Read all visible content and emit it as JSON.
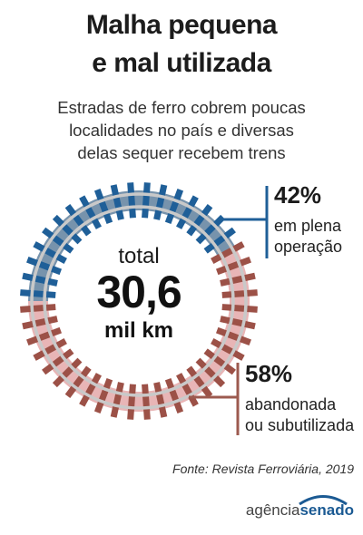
{
  "header": {
    "title_line1": "Malha pequena",
    "title_line2": "e mal utilizada",
    "subtitle_line1": "Estradas de ferro cobrem poucas",
    "subtitle_line2": "localidades no país e diversas",
    "subtitle_line3": "delas sequer recebem trens"
  },
  "center": {
    "label": "total",
    "value": "30,6",
    "unit": "mil km"
  },
  "chart_data": {
    "type": "pie",
    "total": "30,6 mil km",
    "series": [
      {
        "name": "em plena operação",
        "percent_label": "42%",
        "desc_line1": "em plena",
        "desc_line2": "operação",
        "value": 42,
        "tie_color": "#1f5f98",
        "bed_color": "#7793ac",
        "line_color": "#1f5f98"
      },
      {
        "name": "abandonada ou subutilizada",
        "percent_label": "58%",
        "desc_line1": "abandonada",
        "desc_line2": "ou subutilizada",
        "value": 58,
        "tie_color": "#9c5147",
        "bed_color": "#e8b5b6",
        "line_color": "#9c5a4f"
      }
    ]
  },
  "footer": {
    "source": "Fonte: Revista Ferroviária, 2019",
    "logo_part1": "agência",
    "logo_part2": "senado"
  }
}
